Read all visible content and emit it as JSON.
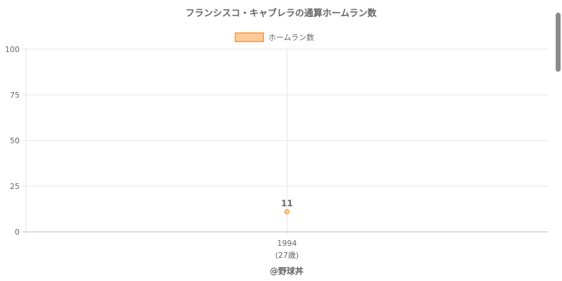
{
  "chart_data": {
    "type": "line",
    "title": "フランシスコ・キャブレラの通算ホームラン数",
    "categories": [
      "1994"
    ],
    "category_sublabels": [
      "(27歳)"
    ],
    "series": [
      {
        "name": "ホームラン数",
        "values": [
          11
        ],
        "color": "#ffa64d"
      }
    ],
    "data_labels": [
      "11"
    ],
    "ylim": [
      0,
      100
    ],
    "yticks": [
      0,
      25,
      50,
      75,
      100
    ],
    "grid": true,
    "legend": "top"
  },
  "credit": "@野球丼"
}
